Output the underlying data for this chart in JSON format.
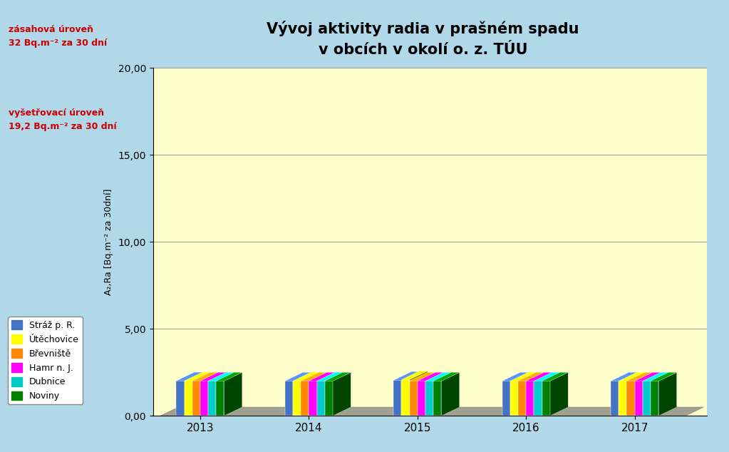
{
  "title_line1": "Vývoj aktivity radia v prašném spadu",
  "title_line2": "v obcích v okolí o. z. TÚU",
  "ylabel": "A₂,Ra [Bq.m⁻² za 30dní]",
  "background_color": "#b0d8e8",
  "plot_bg_color": "#ffffcc",
  "wall_color": "#e8e8b0",
  "floor_color": "#b0b0a0",
  "years": [
    "2013",
    "2014",
    "2015",
    "2016",
    "2017"
  ],
  "series_names": [
    "Stráž p. R.",
    "Útěchovice",
    "Břevniště",
    "Hamr n. J.",
    "Dubnice",
    "Noviny"
  ],
  "series_colors": [
    "#4472c4",
    "#ffff00",
    "#ff8800",
    "#ff00ff",
    "#00cccc",
    "#008000"
  ],
  "data": [
    [
      2.008,
      2.0,
      2.042,
      2.0,
      2.0
    ],
    [
      2.0,
      2.0,
      2.083,
      2.0,
      2.0
    ],
    [
      2.0,
      2.0,
      2.0,
      2.0,
      2.0
    ],
    [
      2.0,
      2.0,
      2.0,
      2.0,
      2.0
    ],
    [
      2.0,
      2.0,
      2.0,
      2.0,
      2.0
    ],
    [
      2.0,
      2.0,
      2.0,
      2.0,
      2.0
    ]
  ],
  "ylim": [
    0,
    20
  ],
  "yticks": [
    0.0,
    5.0,
    10.0,
    15.0,
    20.0
  ],
  "annotation_zasahova_line1": "zásahová úroveň",
  "annotation_zasahova_line2": "32 Bq.m⁻² za 30 dní",
  "annotation_vysetrovaci_line1": "vyšetřovací úroveň",
  "annotation_vysetrovaci_line2": "19,2 Bq.m⁻² za 30 dní",
  "annotation_color": "#cc0000",
  "title_fontsize": 15,
  "annotation_fontsize": 9,
  "legend_fontsize": 9
}
